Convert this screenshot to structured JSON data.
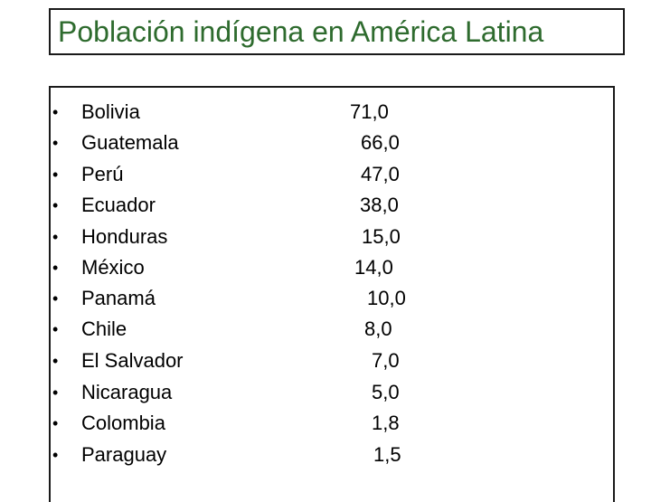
{
  "slide": {
    "title": "Población indígena en América Latina",
    "bullet": "•",
    "rows": [
      {
        "country": "Bolivia",
        "value": "71,0"
      },
      {
        "country": "Guatemala",
        "value": "66,0"
      },
      {
        "country": "Perú",
        "value": "47,0"
      },
      {
        "country": "Ecuador",
        "value": "38,0"
      },
      {
        "country": "Honduras",
        "value": "15,0"
      },
      {
        "country": "México",
        "value": "14,0"
      },
      {
        "country": "Panamá",
        "value": "10,0"
      },
      {
        "country": "Chile",
        "value": "8,0"
      },
      {
        "country": "El Salvador",
        "value": "7,0"
      },
      {
        "country": "Nicaragua",
        "value": "5,0"
      },
      {
        "country": "Colombia",
        "value": "1,8"
      },
      {
        "country": "Paraguay",
        "value": "1,5"
      }
    ]
  }
}
